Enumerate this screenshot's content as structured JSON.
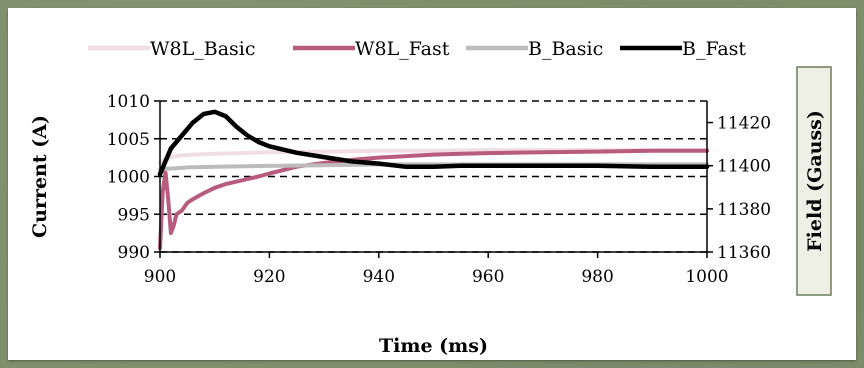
{
  "chart_data": {
    "type": "line",
    "title": "",
    "xlabel": "Time (ms)",
    "ylabel": "Current (A)",
    "y2label": "Field (Gauss)",
    "xlim": [
      900,
      1000
    ],
    "ylim": [
      990,
      1010
    ],
    "y2lim": [
      11360,
      11430
    ],
    "x_ticks": [
      "900",
      "920",
      "940",
      "960",
      "980",
      "1000"
    ],
    "y_ticks": [
      "990",
      "995",
      "1000",
      "1005",
      "1010"
    ],
    "y2_ticks": [
      "11360",
      "11380",
      "11400",
      "11420"
    ],
    "grid": "horizontal-dashed",
    "legend_position": "top",
    "series": [
      {
        "name": "W8L_Basic",
        "axis": "left",
        "color": "#f1dde4",
        "x": [
          900,
          901,
          902,
          904,
          906,
          910,
          915,
          920,
          930,
          940,
          950,
          960,
          970,
          980,
          990,
          1000
        ],
        "y": [
          1001.8,
          1002.3,
          1002.6,
          1002.8,
          1002.9,
          1003.0,
          1003.1,
          1003.2,
          1003.3,
          1003.4,
          1003.4,
          1003.5,
          1003.5,
          1003.5,
          1003.5,
          1003.5
        ]
      },
      {
        "name": "W8L_Fast",
        "axis": "left",
        "color": "#b85c7e",
        "x": [
          900,
          900.5,
          901,
          901.5,
          902,
          902.5,
          903,
          904,
          905,
          906,
          908,
          910,
          912,
          915,
          918,
          920,
          925,
          930,
          935,
          940,
          945,
          950,
          955,
          960,
          970,
          980,
          990,
          1000
        ],
        "y": [
          990.5,
          998,
          1000.5,
          997,
          992.5,
          993.5,
          995,
          995.5,
          996.5,
          997,
          997.8,
          998.5,
          999,
          999.5,
          1000,
          1000.4,
          1001.3,
          1001.8,
          1002.2,
          1002.5,
          1002.7,
          1002.9,
          1003.0,
          1003.1,
          1003.2,
          1003.3,
          1003.4,
          1003.4
        ]
      },
      {
        "name": "B_Basic",
        "axis": "left",
        "color": "#bcbcbc",
        "x": [
          900,
          901,
          903,
          905,
          910,
          920,
          930,
          940,
          950,
          960,
          970,
          980,
          990,
          1000
        ],
        "y": [
          1000.9,
          1001.0,
          1001.1,
          1001.2,
          1001.3,
          1001.4,
          1001.5,
          1001.6,
          1001.6,
          1001.6,
          1001.6,
          1001.6,
          1001.6,
          1001.6
        ]
      },
      {
        "name": "B_Fast",
        "axis": "right",
        "color": "#000000",
        "x": [
          900,
          902,
          904,
          906,
          908,
          910,
          912,
          914,
          916,
          918,
          920,
          925,
          930,
          935,
          940,
          945,
          950,
          955,
          960,
          970,
          980,
          990,
          1000
        ],
        "y": [
          11396,
          11408,
          11414,
          11420,
          11424,
          11425,
          11423,
          11418,
          11414,
          11411,
          11409,
          11406,
          11404,
          11402,
          11401,
          11399.5,
          11399.5,
          11400,
          11400,
          11400,
          11400,
          11399.5,
          11399.5
        ]
      }
    ]
  }
}
